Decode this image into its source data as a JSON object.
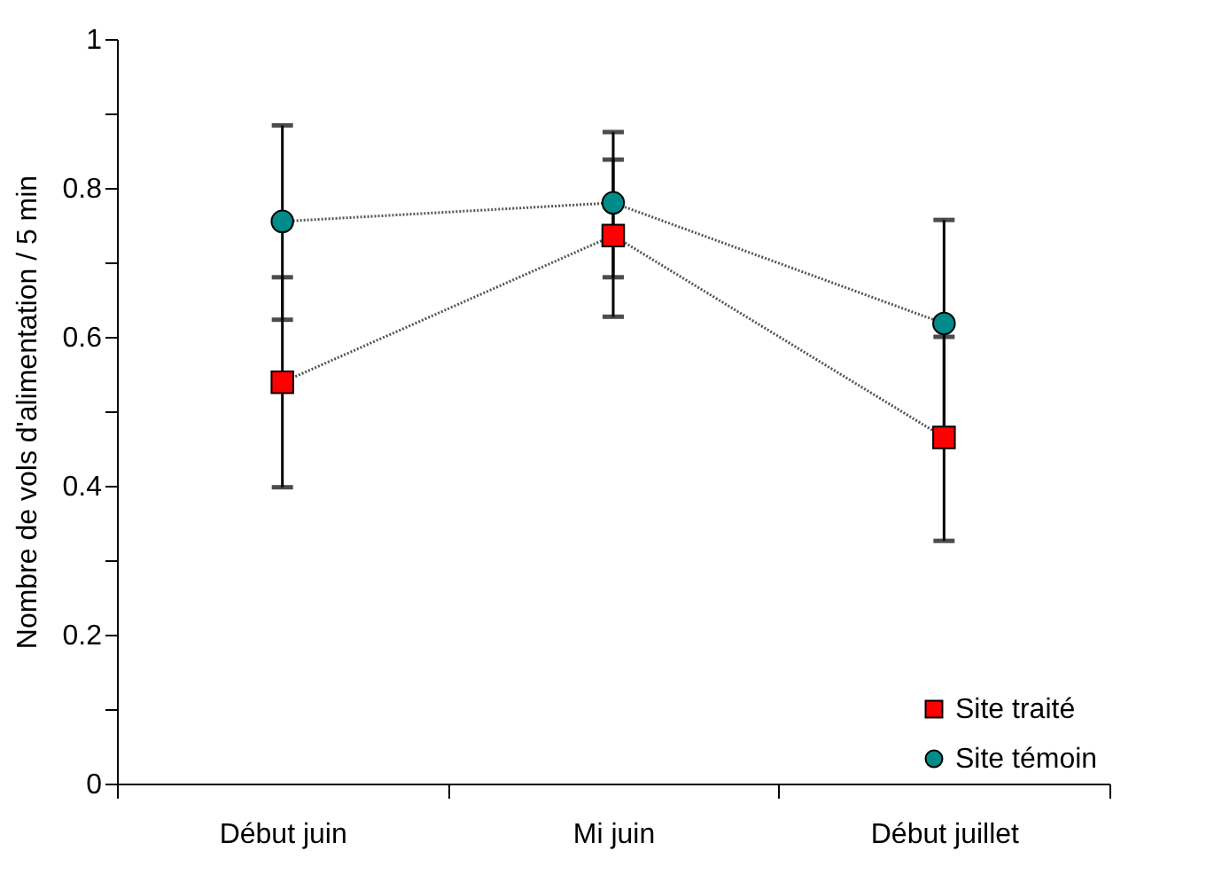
{
  "chart_data": {
    "type": "line",
    "ylabel": "Nombre de vols d'alimentation / 5 min",
    "categories": [
      "Début juin",
      "Mi juin",
      "Début juillet"
    ],
    "series": [
      {
        "name": "Site traité",
        "color": "#ff0000",
        "marker": "square",
        "values": [
          0.539,
          0.736,
          0.465
        ],
        "errors": [
          [
            0.398,
            0.68
          ],
          [
            0.627,
            0.838
          ],
          [
            0.326,
            0.6
          ]
        ]
      },
      {
        "name": "Site témoin",
        "color": "#008b8b",
        "marker": "circle",
        "values": [
          0.755,
          0.78,
          0.618
        ],
        "errors": [
          [
            0.623,
            0.884
          ],
          [
            0.68,
            0.875
          ],
          [
            0.475,
            0.757
          ]
        ]
      }
    ],
    "ylim": [
      0,
      1
    ],
    "yticks": [
      0,
      {
        "value": 0.1,
        "label": null
      },
      0.2,
      {
        "value": 0.3,
        "label": null
      },
      0.4,
      {
        "value": 0.5,
        "label": null
      },
      0.6,
      {
        "value": 0.7,
        "label": null
      },
      0.8,
      {
        "value": 0.9,
        "label": null
      },
      1
    ],
    "line_style": "dotted",
    "legend": "bottom right"
  }
}
